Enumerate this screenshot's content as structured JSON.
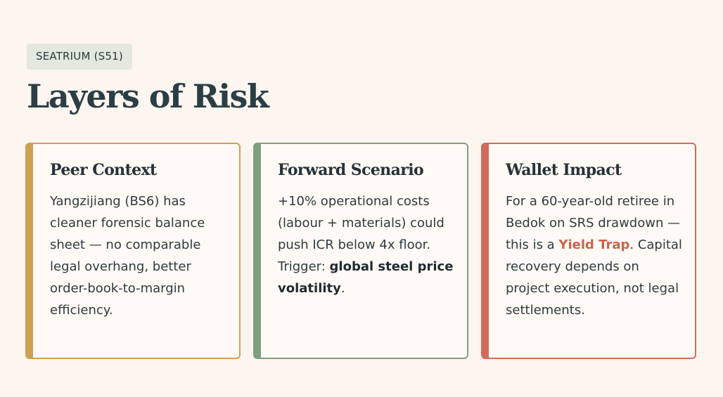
{
  "header": {
    "tag": "SEATRIUM (S51)",
    "title": "Layers of Risk"
  },
  "cards": [
    {
      "title": "Peer Context",
      "body": "Yangzijiang (BS6) has cleaner forensic balance sheet — no comparable legal overhang, better order-book-to-margin efficiency."
    },
    {
      "title": "Forward Scenario",
      "body_prefix": "+10% operational costs (labour + materials) could push ICR below 4x floor. Trigger: ",
      "body_bold": "global steel price volatility",
      "body_suffix": "."
    },
    {
      "title": "Wallet Impact",
      "body_prefix": "For a 60-year-old retiree in Bedok on SRS drawdown — this is a ",
      "body_highlight": "Yield Trap",
      "body_suffix": ". Capital recovery depends on project execution, not legal settlements."
    }
  ],
  "colors": {
    "background": "#fdf6f0",
    "peer_accent": "#cf9f52",
    "forward_accent": "#7f9f80",
    "wallet_accent": "#d36a5c",
    "highlight_text": "#d0604e"
  }
}
